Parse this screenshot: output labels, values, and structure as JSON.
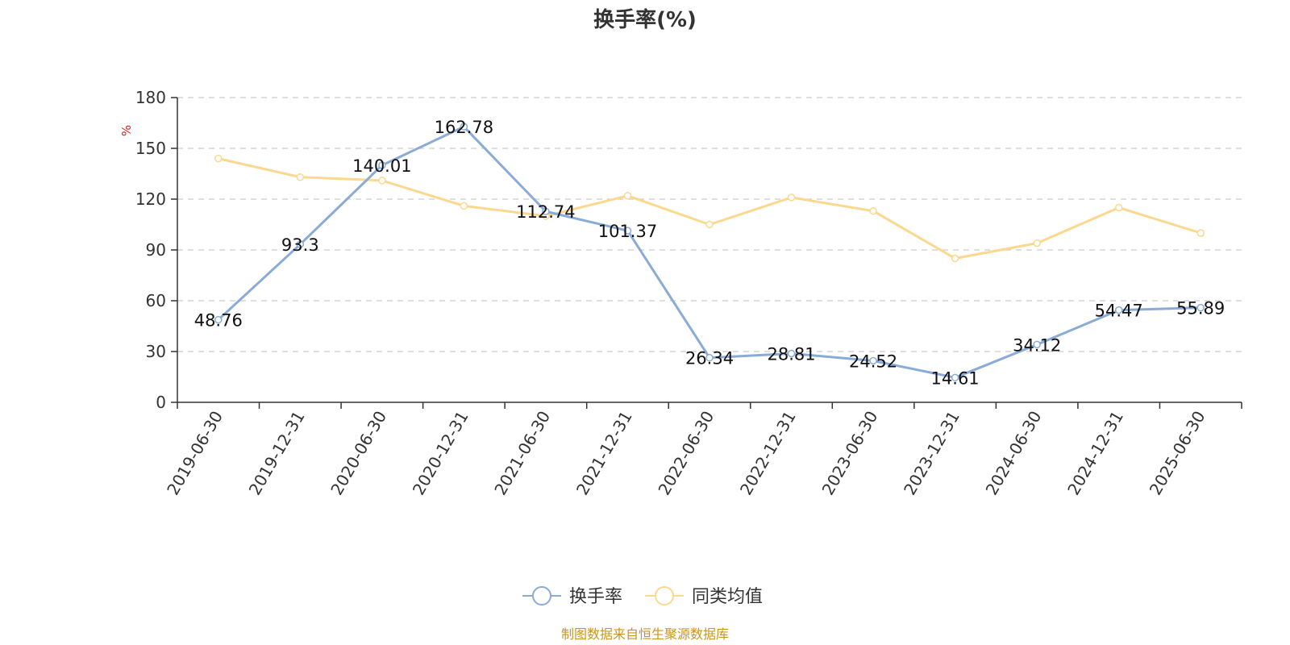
{
  "chart_data": {
    "type": "line",
    "title": "换手率(%)",
    "ylabel": "%",
    "ylim": [
      0,
      180
    ],
    "yticks": [
      0,
      30,
      60,
      90,
      120,
      150,
      180
    ],
    "categories": [
      "2019-06-30",
      "2019-12-31",
      "2020-06-30",
      "2020-12-31",
      "2021-06-30",
      "2021-12-31",
      "2022-06-30",
      "2022-12-31",
      "2023-06-30",
      "2023-12-31",
      "2024-06-30",
      "2024-12-31",
      "2025-06-30"
    ],
    "series": [
      {
        "name": "换手率",
        "color": "#8aabd6",
        "values": [
          48.76,
          93.3,
          140.01,
          162.78,
          112.74,
          101.37,
          26.34,
          28.81,
          24.52,
          14.61,
          34.12,
          54.47,
          55.89
        ],
        "labels": [
          "48.76",
          "93.3",
          "140.01",
          "162.78",
          "112.74",
          "101.37",
          "26.34",
          "28.81",
          "24.52",
          "14.61",
          "34.12",
          "54.47",
          "55.89"
        ]
      },
      {
        "name": "同类均值",
        "color": "#fbd88e",
        "values": [
          144,
          133,
          131,
          116,
          110,
          122,
          105,
          121,
          113,
          85,
          94,
          115,
          100
        ]
      }
    ],
    "grid": true,
    "legend_position": "bottom-center",
    "source": "制图数据来自恒生聚源数据库"
  }
}
